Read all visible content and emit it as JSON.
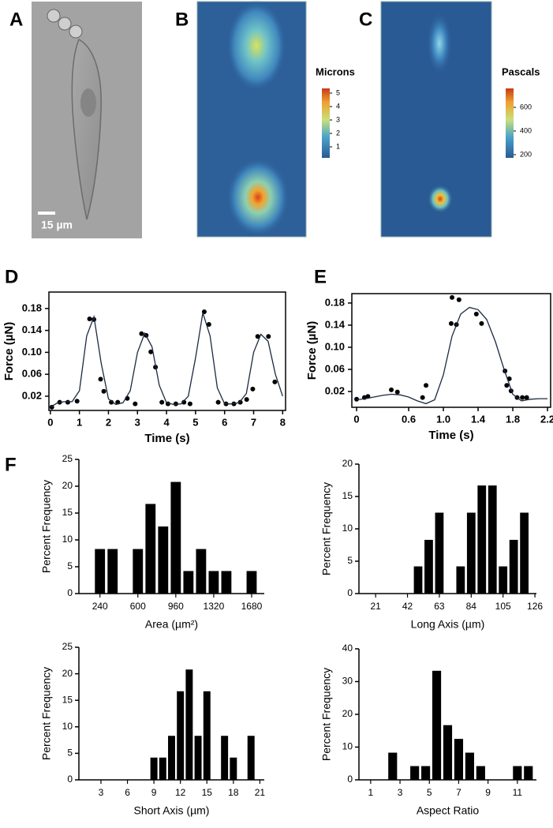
{
  "panel_labels": [
    "A",
    "B",
    "C",
    "D",
    "E",
    "F"
  ],
  "images": [
    {
      "scale_bar": "15 µm"
    },
    {
      "colorbar_title": "Microns",
      "colorbar_ticks": [
        1,
        2,
        3,
        4,
        5
      ],
      "clim": [
        0.18,
        5.35
      ]
    },
    {
      "colorbar_title": "Pascals",
      "colorbar_ticks": [
        200,
        400,
        600
      ],
      "clim": [
        173,
        760
      ]
    }
  ],
  "chart_data": [
    {
      "type": "line",
      "xlabel": "Time (s)",
      "ylabel": "Force (µN)",
      "xlim": [
        -0.05,
        8.1
      ],
      "ylim": [
        -0.006,
        0.21
      ],
      "xticks": [
        0,
        1,
        2,
        3,
        4,
        5,
        6,
        7,
        8
      ],
      "yticks": [
        0.02,
        0.06,
        {
          "value": 0.1,
          "label": "0.10"
        },
        0.14,
        0.18
      ],
      "series": [
        {
          "mark": "points",
          "color": "#000000",
          "x": [
            0.05,
            0.32,
            0.6,
            0.92,
            1.35,
            1.5,
            1.73,
            1.84,
            2.1,
            2.32,
            2.65,
            2.92,
            3.14,
            3.3,
            3.46,
            3.62,
            3.84,
            4.05,
            4.32,
            4.6,
            4.81,
            5.3,
            5.46,
            5.78,
            6.05,
            6.32,
            6.54,
            6.76,
            6.97,
            7.14,
            7.51,
            7.73
          ],
          "values": [
            0.0,
            0.009,
            0.009,
            0.011,
            0.161,
            0.16,
            0.051,
            0.029,
            0.009,
            0.009,
            0.016,
            0.006,
            0.134,
            0.131,
            0.101,
            0.073,
            0.009,
            0.006,
            0.006,
            0.009,
            0.006,
            0.174,
            0.151,
            0.009,
            0.006,
            0.006,
            0.009,
            0.014,
            0.033,
            0.129,
            0.129,
            0.046
          ]
        },
        {
          "mark": "line",
          "color": "#1a2a40",
          "x": [
            0,
            0.25,
            0.5,
            0.75,
            1.0,
            1.25,
            1.5,
            1.75,
            2.0,
            2.25,
            2.5,
            2.75,
            3.0,
            3.25,
            3.5,
            3.75,
            4.0,
            4.25,
            4.5,
            4.75,
            5.0,
            5.25,
            5.5,
            5.75,
            6.0,
            6.25,
            6.5,
            6.75,
            7.0,
            7.25,
            7.5,
            7.75,
            8.0
          ],
          "values": [
            0.0,
            0.008,
            0.01,
            0.01,
            0.03,
            0.13,
            0.165,
            0.08,
            0.015,
            0.005,
            0.008,
            0.03,
            0.1,
            0.135,
            0.11,
            0.04,
            0.008,
            0.005,
            0.006,
            0.02,
            0.09,
            0.172,
            0.13,
            0.035,
            0.006,
            0.006,
            0.008,
            0.025,
            0.1,
            0.133,
            0.12,
            0.06,
            0.02
          ]
        }
      ]
    },
    {
      "type": "line",
      "xlabel": "Time (s)",
      "ylabel": "Force (µN)",
      "xlim": [
        -0.055,
        2.236
      ],
      "ylim": [
        -0.0086,
        0.197
      ],
      "xticks": [
        0,
        0.6,
        {
          "value": 1,
          "label": "1.0"
        },
        1.4,
        1.8,
        2.2
      ],
      "yticks": [
        0.02,
        0.06,
        {
          "value": 0.1,
          "label": "0.10"
        },
        0.14,
        0.18
      ],
      "series": [
        {
          "mark": "points",
          "color": "#000000",
          "x": [
            0.0,
            0.09,
            0.13,
            0.4,
            0.47,
            0.76,
            0.8,
            1.1,
            1.18,
            1.09,
            1.15,
            1.38,
            1.44,
            1.71,
            1.76,
            1.73,
            1.78,
            1.85,
            1.91,
            1.96
          ],
          "values": [
            0.006,
            0.009,
            0.011,
            0.023,
            0.019,
            0.009,
            0.031,
            0.19,
            0.186,
            0.143,
            0.141,
            0.16,
            0.143,
            0.057,
            0.043,
            0.031,
            0.021,
            0.009,
            0.009,
            0.009
          ]
        },
        {
          "mark": "line",
          "color": "#1a2a40",
          "x": [
            0,
            0.1,
            0.2,
            0.3,
            0.4,
            0.5,
            0.6,
            0.7,
            0.8,
            0.9,
            1.0,
            1.1,
            1.2,
            1.3,
            1.4,
            1.5,
            1.6,
            1.7,
            1.8,
            1.9,
            2.0,
            2.1,
            2.2
          ],
          "values": [
            0.005,
            0.007,
            0.01,
            0.013,
            0.015,
            0.014,
            0.01,
            0.003,
            -0.002,
            0.005,
            0.05,
            0.12,
            0.16,
            0.172,
            0.168,
            0.15,
            0.11,
            0.06,
            0.015,
            0.003,
            0.006,
            0.007,
            0.007
          ]
        }
      ]
    },
    {
      "type": "bar",
      "xlabel": "Area (µm²)",
      "ylabel": "Percent Frequency",
      "color": "#000000",
      "xlim": [
        40,
        1800
      ],
      "ylim": [
        0,
        25
      ],
      "xticks": [
        240,
        600,
        960,
        1320,
        1680
      ],
      "yticks": [
        0,
        5,
        10,
        15,
        20,
        25
      ],
      "x": [
        240,
        360,
        600,
        720,
        840,
        960,
        1080,
        1200,
        1320,
        1440,
        1680
      ],
      "values": [
        8.3,
        8.3,
        8.3,
        16.7,
        12.5,
        20.8,
        4.2,
        8.3,
        4.2,
        4.2,
        4.2
      ]
    },
    {
      "type": "bar",
      "xlabel": "Long Axis (µm)",
      "ylabel": "Percent Frequency",
      "color": "#000000",
      "xlim": [
        10,
        127
      ],
      "ylim": [
        0,
        20
      ],
      "xticks": [
        21,
        42,
        63,
        84,
        105,
        126
      ],
      "yticks": [
        0,
        5,
        10,
        15,
        20
      ],
      "x": [
        49,
        56,
        63,
        77,
        84,
        91,
        98,
        105,
        112,
        119
      ],
      "values": [
        4.2,
        8.3,
        12.5,
        4.2,
        12.5,
        16.7,
        16.7,
        4.2,
        8.3,
        12.5
      ]
    },
    {
      "type": "bar",
      "xlabel": "Short Axis (µm)",
      "ylabel": "Percent Frequency",
      "color": "#000000",
      "xlim": [
        0.5,
        21.5
      ],
      "ylim": [
        0,
        25
      ],
      "xticks": [
        3,
        6,
        9,
        12,
        15,
        18,
        21
      ],
      "yticks": [
        0,
        5,
        10,
        15,
        20,
        25
      ],
      "x": [
        9,
        10,
        11,
        12,
        13,
        14,
        15,
        17,
        18,
        20
      ],
      "values": [
        4.2,
        4.2,
        8.3,
        16.7,
        20.8,
        8.3,
        16.7,
        8.3,
        4.2,
        8.3
      ]
    },
    {
      "type": "bar",
      "xlabel": "Aspect Ratio",
      "ylabel": "Percent Frequency",
      "color": "#000000",
      "xlim": [
        0.2,
        12.3
      ],
      "ylim": [
        0,
        40
      ],
      "xticks": [
        1,
        3,
        5,
        7,
        9,
        11
      ],
      "yticks": [
        0,
        10,
        20,
        30,
        40
      ],
      "x": [
        2.5,
        4.0,
        4.75,
        5.5,
        6.25,
        7.0,
        7.75,
        8.5,
        11.0,
        11.75
      ],
      "values": [
        8.3,
        4.2,
        4.2,
        33.3,
        16.7,
        12.5,
        8.3,
        4.2,
        4.2,
        4.2
      ]
    }
  ]
}
